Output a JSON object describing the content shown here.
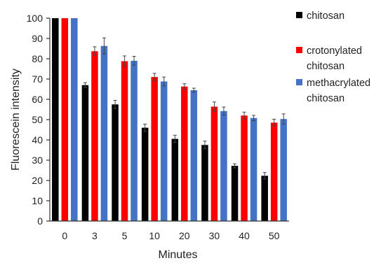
{
  "chart_data": {
    "type": "bar",
    "title": "",
    "xlabel": "Minutes",
    "ylabel": "Fluorescein intensity",
    "ylim": [
      0,
      100
    ],
    "yticks": [
      0,
      10,
      20,
      30,
      40,
      50,
      60,
      70,
      80,
      90,
      100
    ],
    "grid": false,
    "legend_position": "right",
    "categories": [
      "0",
      "3",
      "5",
      "10",
      "20",
      "30",
      "40",
      "50"
    ],
    "series": [
      {
        "name": "chitosan",
        "color": "#000000",
        "values": [
          100,
          67,
          57.5,
          46,
          40.5,
          37.5,
          27.2,
          22.3
        ],
        "errors": [
          0,
          1.2,
          2,
          1.8,
          1.8,
          1.9,
          1,
          1.6
        ]
      },
      {
        "name": "crotonylated chitosan",
        "legend_lines": [
          "crotonylated",
          "chitosan"
        ],
        "color": "#ff0000",
        "values": [
          100,
          83.7,
          78.8,
          71,
          66.3,
          56.4,
          52,
          48.5
        ],
        "errors": [
          0,
          2.2,
          2.6,
          1.8,
          1.4,
          2.3,
          1.7,
          1.7
        ]
      },
      {
        "name": "methacrylated chitosan",
        "legend_lines": [
          "methacrylated",
          "chitosan"
        ],
        "color": "#4472c4",
        "values": [
          100,
          86.3,
          79,
          68.8,
          64.5,
          54.2,
          50.8,
          50.3
        ],
        "errors": [
          0,
          4,
          2.2,
          2.2,
          1,
          2,
          1.3,
          2.5
        ]
      }
    ]
  }
}
